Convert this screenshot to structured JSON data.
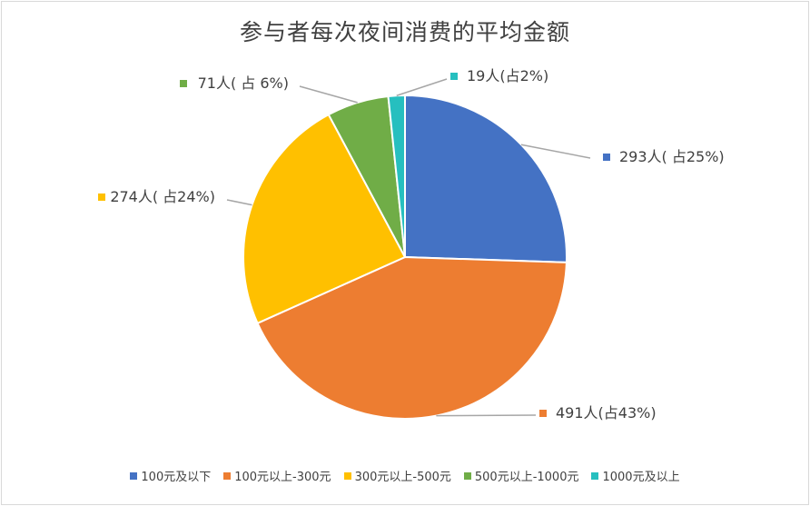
{
  "chart_data": {
    "type": "pie",
    "title": "参与者每次夜间消费的平均金额",
    "slices": [
      {
        "name": "100元及以下",
        "value": 293,
        "label": "293人( 占25%)",
        "color": "#4472c4"
      },
      {
        "name": "100元以上-300元",
        "value": 491,
        "label": "491人(占43%)",
        "color": "#ed7d31"
      },
      {
        "name": "300元以上-500元",
        "value": 274,
        "label": "274人( 占24%)",
        "color": "#ffc000"
      },
      {
        "name": "500元以上-1000元",
        "value": 71,
        "label": "71人( 占 6%)",
        "color": "#70ad47"
      },
      {
        "name": "1000元及以上",
        "value": 19,
        "label": "19人(占2%)",
        "color": "#26bfbf"
      }
    ],
    "legend_position": "bottom"
  }
}
